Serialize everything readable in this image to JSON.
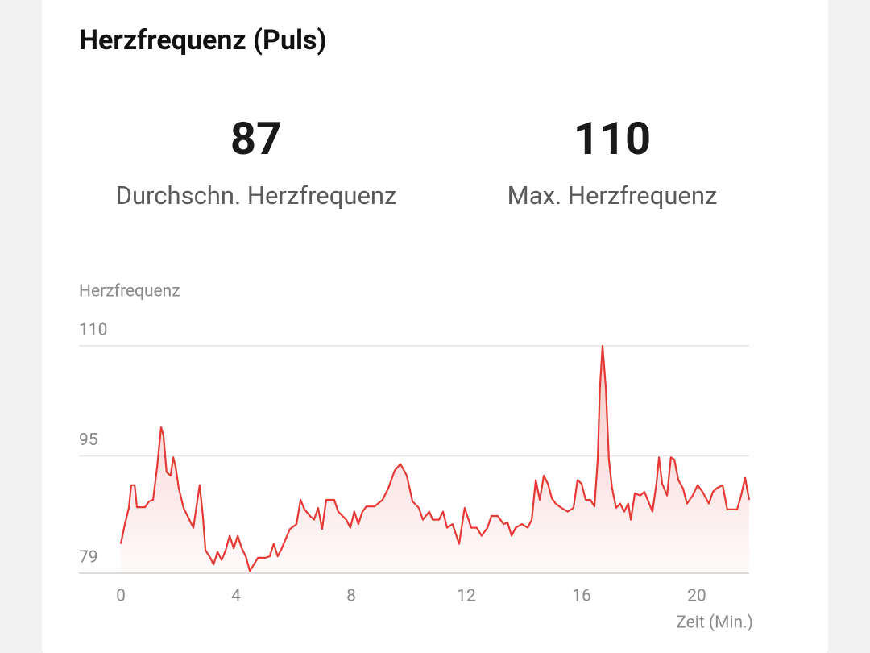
{
  "title": "Herzfrequenz (Puls)",
  "stats": [
    {
      "value": 87,
      "label": "Durchschn. Herzfrequenz"
    },
    {
      "value": 110,
      "label": "Max. Herzfrequenz"
    }
  ],
  "chart_data": {
    "type": "line",
    "y_label": "Herzfrequenz",
    "x_label": "Zeit (Min.)",
    "color": "#e53935",
    "grid": true,
    "xlim": [
      0,
      21.82
    ],
    "xticks": [
      0,
      4,
      8,
      12,
      16,
      20
    ],
    "ylim": [
      79,
      110
    ],
    "yticks": [
      79,
      95,
      110
    ],
    "x": [
      0,
      0.14,
      0.28,
      0.36,
      0.48,
      0.56,
      0.84,
      0.98,
      1.12,
      1.26,
      1.4,
      1.48,
      1.59,
      1.73,
      1.82,
      1.9,
      2.01,
      2.18,
      2.38,
      2.52,
      2.66,
      2.74,
      2.85,
      2.94,
      3.08,
      3.22,
      3.36,
      3.5,
      3.64,
      3.78,
      3.92,
      4.06,
      4.2,
      4.34,
      4.48,
      4.62,
      4.76,
      5.03,
      5.17,
      5.31,
      5.45,
      5.59,
      5.87,
      6.1,
      6.24,
      6.38,
      6.57,
      6.71,
      6.85,
      6.99,
      7.13,
      7.41,
      7.55,
      7.83,
      7.97,
      8.11,
      8.25,
      8.39,
      8.53,
      8.81,
      9.09,
      9.29,
      9.51,
      9.71,
      9.93,
      10.13,
      10.35,
      10.49,
      10.71,
      10.83,
      11.05,
      11.19,
      11.33,
      11.52,
      11.75,
      11.94,
      12.17,
      12.36,
      12.53,
      12.73,
      12.87,
      13.09,
      13.29,
      13.43,
      13.57,
      13.71,
      13.93,
      14.13,
      14.27,
      14.41,
      14.55,
      14.69,
      14.83,
      14.97,
      15.1,
      15.3,
      15.52,
      15.72,
      15.86,
      16.0,
      16.14,
      16.31,
      16.45,
      16.56,
      16.64,
      16.73,
      16.84,
      16.95,
      17.06,
      17.2,
      17.34,
      17.48,
      17.62,
      17.71,
      17.85,
      18.04,
      18.18,
      18.32,
      18.46,
      18.6,
      18.69,
      18.8,
      18.97,
      19.1,
      19.22,
      19.36,
      19.52,
      19.66,
      19.86,
      20.03,
      20.2,
      20.42,
      20.56,
      20.7,
      20.9,
      21.06,
      21.4,
      21.54,
      21.68,
      21.82
    ],
    "values": [
      83,
      85.7,
      87.9,
      91,
      91,
      88,
      88,
      88.8,
      89,
      93.4,
      98.9,
      97.8,
      92.8,
      92.3,
      94.8,
      93.6,
      90.6,
      87.9,
      86.3,
      85.2,
      89,
      91,
      86.8,
      82.1,
      81.3,
      80.2,
      81.9,
      80.8,
      82.1,
      84.1,
      82.4,
      84.1,
      82.4,
      81.3,
      79.3,
      80.2,
      81.1,
      81.1,
      81.3,
      83,
      81.3,
      82.4,
      85,
      85.7,
      89,
      87.7,
      86.8,
      86.3,
      87.9,
      85,
      89,
      89,
      87.4,
      86.3,
      85.2,
      87.4,
      85.7,
      87.4,
      88.1,
      88.1,
      89,
      90.6,
      93,
      93.9,
      92.3,
      88.8,
      87.9,
      86.3,
      87.4,
      86.3,
      86.3,
      87.4,
      85.2,
      85.7,
      83,
      87.9,
      85.2,
      85.2,
      84.1,
      85.2,
      86.8,
      86.8,
      85.7,
      85.9,
      84.1,
      85.2,
      85.7,
      85.2,
      86.3,
      91.7,
      89,
      92.3,
      91.2,
      89.2,
      88.5,
      87.9,
      87.4,
      87.9,
      91.7,
      91.2,
      89,
      89,
      88.1,
      94.5,
      104.4,
      110,
      104.4,
      94.5,
      90.6,
      87.9,
      88.5,
      87.4,
      88.5,
      86.3,
      89.9,
      89.6,
      90.1,
      88.8,
      87.4,
      91.2,
      94.8,
      91.2,
      89.6,
      94.8,
      94.5,
      91.7,
      90.6,
      88.5,
      89.6,
      91,
      90.1,
      88.5,
      90.1,
      90.6,
      91,
      87.7,
      87.7,
      89.6,
      92,
      89
    ]
  }
}
